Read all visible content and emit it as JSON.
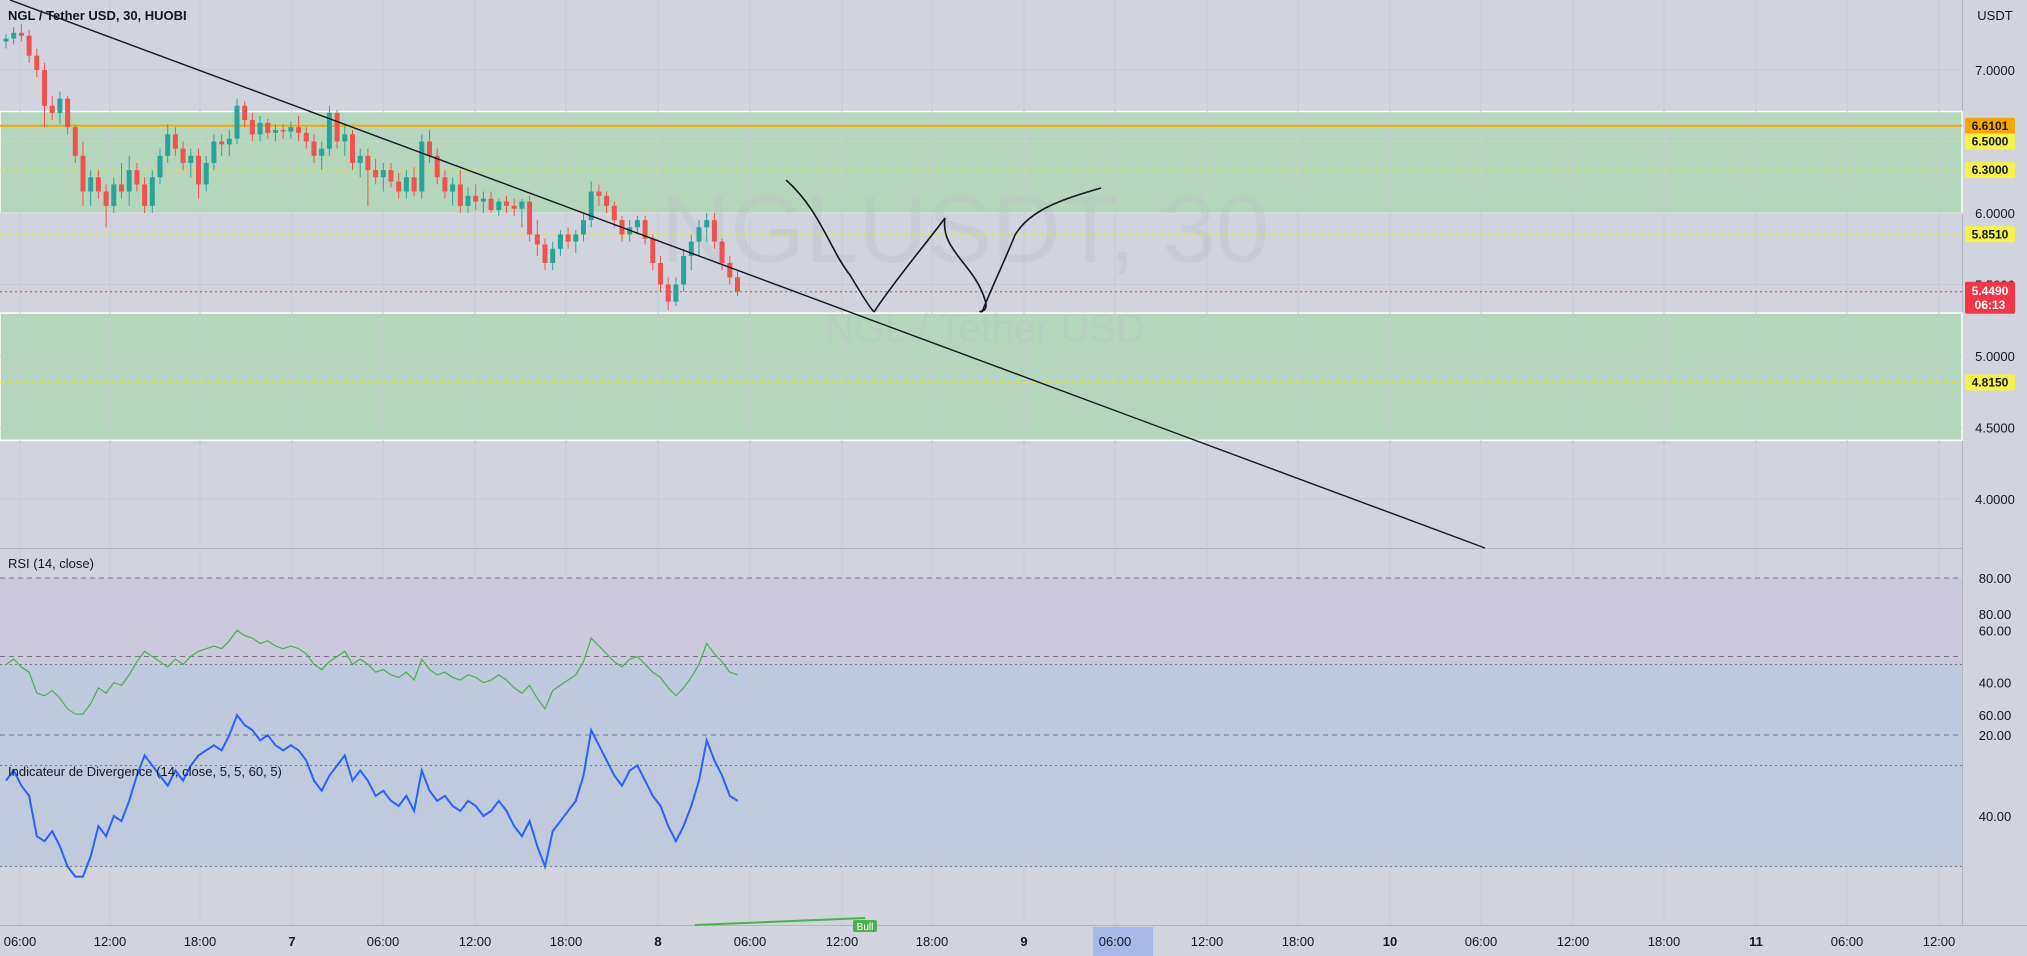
{
  "header": {
    "title": "NGL / Tether USD, 30, HUOBI",
    "currency": "USDT"
  },
  "watermark": {
    "symbol": "NGLUSDT, 30",
    "description": "NGL / Tether USD"
  },
  "price_labels": [
    {
      "text": "6.6101",
      "value": 6.6101,
      "bg": "#f7a600",
      "fg": "#131722"
    },
    {
      "text": "6.5000",
      "value": 6.5,
      "bg": "#f5f24b",
      "fg": "#131722"
    },
    {
      "text": "6.3000",
      "value": 6.3,
      "bg": "#f5f24b",
      "fg": "#131722"
    },
    {
      "text": "5.8510",
      "value": 5.851,
      "bg": "#f5f24b",
      "fg": "#131722"
    },
    {
      "text": "4.8150",
      "value": 4.815,
      "bg": "#f5f24b",
      "fg": "#131722"
    }
  ],
  "current_price": {
    "price": "5.4490",
    "countdown": "06:13",
    "value": 5.449,
    "bg": "#f23645"
  },
  "rsi_pane": {
    "title": "RSI (14, close)"
  },
  "div_pane": {
    "title": "Indicateur de Divergence (14, close, 5, 5, 60, 5)",
    "signal_label": "Bull"
  },
  "time_axis": {
    "labels": [
      "06:00",
      "12:00",
      "18:00",
      "7",
      "06:00",
      "12:00",
      "18:00",
      "8",
      "06:00",
      "12:00",
      "18:00",
      "9",
      "06:00",
      "12:00",
      "18:00",
      "10",
      "06:00",
      "12:00",
      "18:00",
      "11",
      "06:00",
      "12:00"
    ],
    "highlight": "06:00"
  },
  "chart_data": {
    "type": "candlestick",
    "title": "NGL / Tether USD, 30, HUOBI",
    "ylim": [
      3.6,
      7.5
    ],
    "y_ticks": [
      "7.0000",
      "6.5000",
      "6.0000",
      "5.5000",
      "5.0000",
      "4.5000",
      "4.0000"
    ],
    "candles": [
      [
        7.2,
        7.25,
        7.15,
        7.22
      ],
      [
        7.22,
        7.3,
        7.18,
        7.26
      ],
      [
        7.26,
        7.32,
        7.2,
        7.24
      ],
      [
        7.24,
        7.28,
        7.05,
        7.1
      ],
      [
        7.1,
        7.15,
        6.95,
        7.0
      ],
      [
        7.0,
        7.05,
        6.6,
        6.75
      ],
      [
        6.75,
        6.82,
        6.65,
        6.7
      ],
      [
        6.7,
        6.85,
        6.62,
        6.8
      ],
      [
        6.8,
        6.82,
        6.55,
        6.6
      ],
      [
        6.6,
        6.62,
        6.35,
        6.4
      ],
      [
        6.4,
        6.5,
        6.05,
        6.15
      ],
      [
        6.15,
        6.3,
        6.05,
        6.25
      ],
      [
        6.25,
        6.3,
        6.1,
        6.15
      ],
      [
        6.15,
        6.2,
        5.9,
        6.05
      ],
      [
        6.05,
        6.25,
        6.0,
        6.2
      ],
      [
        6.2,
        6.35,
        6.1,
        6.15
      ],
      [
        6.15,
        6.4,
        6.05,
        6.3
      ],
      [
        6.3,
        6.35,
        6.15,
        6.2
      ],
      [
        6.2,
        6.25,
        6.0,
        6.05
      ],
      [
        6.05,
        6.3,
        6.0,
        6.25
      ],
      [
        6.25,
        6.45,
        6.2,
        6.4
      ],
      [
        6.4,
        6.62,
        6.35,
        6.55
      ],
      [
        6.55,
        6.6,
        6.4,
        6.45
      ],
      [
        6.45,
        6.5,
        6.3,
        6.35
      ],
      [
        6.35,
        6.45,
        6.25,
        6.4
      ],
      [
        6.4,
        6.45,
        6.1,
        6.2
      ],
      [
        6.2,
        6.4,
        6.15,
        6.35
      ],
      [
        6.35,
        6.55,
        6.3,
        6.5
      ],
      [
        6.5,
        6.55,
        6.4,
        6.48
      ],
      [
        6.48,
        6.58,
        6.4,
        6.52
      ],
      [
        6.52,
        6.8,
        6.48,
        6.75
      ],
      [
        6.75,
        6.78,
        6.6,
        6.65
      ],
      [
        6.65,
        6.7,
        6.5,
        6.55
      ],
      [
        6.55,
        6.68,
        6.5,
        6.63
      ],
      [
        6.63,
        6.66,
        6.52,
        6.56
      ],
      [
        6.56,
        6.62,
        6.5,
        6.58
      ],
      [
        6.58,
        6.62,
        6.52,
        6.57
      ],
      [
        6.57,
        6.64,
        6.52,
        6.6
      ],
      [
        6.6,
        6.68,
        6.5,
        6.56
      ],
      [
        6.56,
        6.6,
        6.45,
        6.5
      ],
      [
        6.5,
        6.55,
        6.35,
        6.4
      ],
      [
        6.4,
        6.5,
        6.3,
        6.45
      ],
      [
        6.45,
        6.75,
        6.4,
        6.7
      ],
      [
        6.7,
        6.72,
        6.45,
        6.5
      ],
      [
        6.5,
        6.62,
        6.4,
        6.55
      ],
      [
        6.55,
        6.58,
        6.3,
        6.35
      ],
      [
        6.35,
        6.45,
        6.25,
        6.4
      ],
      [
        6.4,
        6.45,
        6.05,
        6.3
      ],
      [
        6.3,
        6.38,
        6.2,
        6.25
      ],
      [
        6.25,
        6.35,
        6.15,
        6.3
      ],
      [
        6.3,
        6.35,
        6.18,
        6.22
      ],
      [
        6.22,
        6.28,
        6.1,
        6.15
      ],
      [
        6.15,
        6.3,
        6.1,
        6.25
      ],
      [
        6.25,
        6.32,
        6.12,
        6.15
      ],
      [
        6.15,
        6.55,
        6.1,
        6.5
      ],
      [
        6.5,
        6.58,
        6.35,
        6.4
      ],
      [
        6.4,
        6.45,
        6.2,
        6.25
      ],
      [
        6.25,
        6.3,
        6.1,
        6.15
      ],
      [
        6.15,
        6.25,
        6.05,
        6.2
      ],
      [
        6.2,
        6.3,
        6.0,
        6.05
      ],
      [
        6.05,
        6.18,
        6.0,
        6.12
      ],
      [
        6.12,
        6.2,
        6.02,
        6.08
      ],
      [
        6.08,
        6.15,
        6.0,
        6.1
      ],
      [
        6.1,
        6.15,
        6.0,
        6.02
      ],
      [
        6.02,
        6.1,
        5.98,
        6.08
      ],
      [
        6.08,
        6.12,
        6.0,
        6.05
      ],
      [
        6.05,
        6.1,
        5.98,
        6.03
      ],
      [
        6.03,
        6.1,
        5.9,
        6.08
      ],
      [
        6.08,
        6.12,
        5.8,
        5.85
      ],
      [
        5.85,
        5.95,
        5.7,
        5.78
      ],
      [
        5.78,
        5.82,
        5.6,
        5.65
      ],
      [
        5.65,
        5.8,
        5.6,
        5.75
      ],
      [
        5.75,
        5.88,
        5.7,
        5.85
      ],
      [
        5.85,
        5.9,
        5.75,
        5.8
      ],
      [
        5.8,
        5.88,
        5.72,
        5.85
      ],
      [
        5.85,
        6.0,
        5.8,
        5.95
      ],
      [
        5.95,
        6.22,
        5.9,
        6.15
      ],
      [
        6.15,
        6.2,
        6.05,
        6.12
      ],
      [
        6.12,
        6.15,
        6.0,
        6.05
      ],
      [
        6.05,
        6.08,
        5.9,
        5.95
      ],
      [
        5.95,
        5.98,
        5.8,
        5.85
      ],
      [
        5.85,
        5.95,
        5.8,
        5.9
      ],
      [
        5.9,
        5.98,
        5.85,
        5.95
      ],
      [
        5.95,
        5.98,
        5.78,
        5.82
      ],
      [
        5.82,
        5.85,
        5.6,
        5.65
      ],
      [
        5.65,
        5.7,
        5.45,
        5.5
      ],
      [
        5.5,
        5.55,
        5.32,
        5.38
      ],
      [
        5.38,
        5.55,
        5.35,
        5.5
      ],
      [
        5.5,
        5.75,
        5.45,
        5.7
      ],
      [
        5.7,
        5.85,
        5.6,
        5.8
      ],
      [
        5.8,
        5.95,
        5.7,
        5.9
      ],
      [
        5.9,
        6.0,
        5.8,
        5.95
      ],
      [
        5.95,
        6.0,
        5.75,
        5.8
      ],
      [
        5.8,
        5.82,
        5.6,
        5.65
      ],
      [
        5.65,
        5.7,
        5.5,
        5.55
      ],
      [
        5.55,
        5.6,
        5.42,
        5.45
      ]
    ],
    "rsi": {
      "values": [
        47,
        49,
        46,
        44,
        36,
        35,
        37,
        34,
        30,
        28,
        28,
        32,
        38,
        36,
        40,
        39,
        43,
        48,
        52,
        50,
        48,
        46,
        49,
        47,
        50,
        52,
        53,
        54,
        53,
        56,
        60,
        58,
        57,
        55,
        56,
        54,
        53,
        54,
        53,
        51,
        47,
        45,
        48,
        50,
        52,
        47,
        49,
        47,
        44,
        45,
        43,
        42,
        44,
        41,
        49,
        45,
        43,
        44,
        42,
        41,
        43,
        42,
        40,
        41,
        43,
        41,
        38,
        36,
        39,
        34,
        30,
        37,
        39,
        41,
        43,
        48,
        57,
        54,
        51,
        48,
        46,
        49,
        50,
        47,
        44,
        42,
        38,
        35,
        38,
        42,
        47,
        55,
        51,
        48,
        44,
        43
      ],
      "bands": [
        80,
        50,
        20
      ],
      "y_ticks": [
        "80.00",
        "60.00",
        "40.00",
        "20.00"
      ]
    },
    "divergence": {
      "values": [
        47,
        49,
        46,
        44,
        36,
        35,
        37,
        34,
        30,
        28,
        28,
        32,
        38,
        36,
        40,
        39,
        43,
        48,
        52,
        50,
        48,
        46,
        49,
        47,
        50,
        52,
        53,
        54,
        53,
        56,
        60,
        58,
        57,
        55,
        56,
        54,
        53,
        54,
        53,
        51,
        47,
        45,
        48,
        50,
        52,
        47,
        49,
        47,
        44,
        45,
        43,
        42,
        44,
        41,
        49,
        45,
        43,
        44,
        42,
        41,
        43,
        42,
        40,
        41,
        43,
        41,
        38,
        36,
        39,
        34,
        30,
        37,
        39,
        41,
        43,
        48,
        57,
        54,
        51,
        48,
        46,
        49,
        50,
        47,
        44,
        42,
        38,
        35,
        38,
        42,
        47,
        55,
        51,
        48,
        44,
        43
      ],
      "bands": [
        70,
        50,
        30
      ],
      "y_ticks": [
        "80.00",
        "60.00",
        "40.00"
      ]
    }
  }
}
